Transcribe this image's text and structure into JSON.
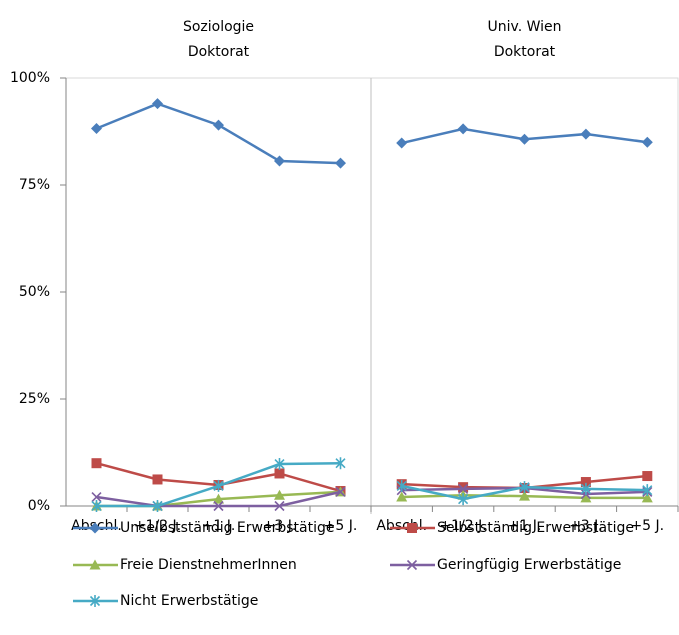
{
  "chart_data": [
    {
      "type": "line",
      "title": "Soziologie",
      "subtitle": "Doktorat",
      "categories": [
        "Abschl.",
        "+1/2 J.",
        "+1 J.",
        "+3 J.",
        "+5 J."
      ],
      "ylim": [
        0,
        100
      ],
      "yticks": [
        {
          "value": 0,
          "label": "0%"
        },
        {
          "value": 25,
          "label": "25%"
        },
        {
          "value": 50,
          "label": "50%"
        },
        {
          "value": 75,
          "label": "75%"
        },
        {
          "value": 100,
          "label": "100%"
        }
      ],
      "series": [
        {
          "name": "Unselbstständig Erwerbstätige",
          "color": "#4a7ebb",
          "marker": "diamond",
          "values": [
            88.2,
            94,
            89,
            80.6,
            80.1
          ]
        },
        {
          "name": "Selbstständig Erwerbstätige",
          "color": "#be4b48",
          "marker": "square",
          "values": [
            10,
            6.2,
            4.9,
            7.6,
            3.5
          ]
        },
        {
          "name": "Freie DienstnehmerInnen",
          "color": "#98b954",
          "marker": "triangle",
          "values": [
            0,
            0,
            1.6,
            2.5,
            3.3
          ]
        },
        {
          "name": "Geringfügig Erwerbstätige",
          "color": "#7d5fa0",
          "marker": "x",
          "values": [
            2.1,
            0,
            0,
            0,
            3.3
          ]
        },
        {
          "name": "Nicht Erwerbstätige",
          "color": "#46aac5",
          "marker": "star",
          "values": [
            0,
            0,
            4.7,
            9.8,
            10
          ]
        }
      ]
    },
    {
      "type": "line",
      "title": "Univ. Wien",
      "subtitle": "Doktorat",
      "categories": [
        "Abschl.",
        "+1/2 J.",
        "+1 J.",
        "+3 J.",
        "+5 J."
      ],
      "ylim": [
        0,
        100
      ],
      "series": [
        {
          "color": "#4a7ebb",
          "marker": "diamond",
          "values": [
            84.8,
            88.1,
            85.7,
            86.9,
            85
          ]
        },
        {
          "color": "#be4b48",
          "marker": "square",
          "values": [
            5.1,
            4.4,
            4.2,
            5.6,
            7
          ]
        },
        {
          "color": "#98b954",
          "marker": "triangle",
          "values": [
            2.1,
            2.5,
            2.3,
            1.9,
            1.9
          ]
        },
        {
          "color": "#7d5fa0",
          "marker": "x",
          "values": [
            3.7,
            4,
            4.2,
            2.8,
            3.3
          ]
        },
        {
          "color": "#46aac5",
          "marker": "star",
          "values": [
            4.7,
            1.6,
            4.4,
            4,
            3.7
          ]
        }
      ]
    }
  ]
}
